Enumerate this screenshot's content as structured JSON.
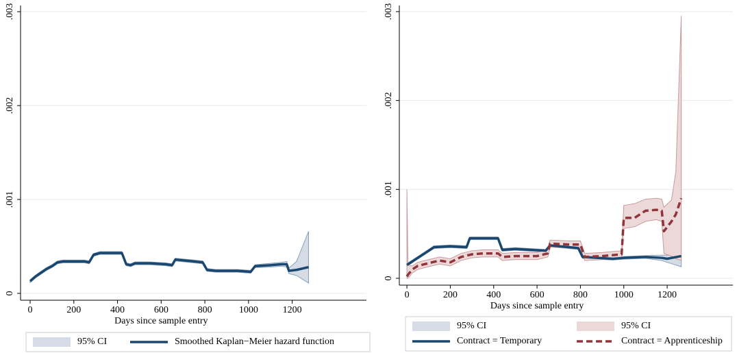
{
  "chart_data": [
    {
      "type": "line",
      "xlabel": "Days since sample entry",
      "xlim": [
        -44,
        1540
      ],
      "ylim": [
        -7.3e-05,
        0.003066
      ],
      "xticks": [
        0,
        200,
        400,
        600,
        800,
        1000,
        1200
      ],
      "yticks": [
        0,
        {
          "value": 0.001,
          "label": ".001"
        },
        {
          "value": 0.002,
          "label": ".002"
        },
        {
          "value": 0.003,
          "label": ".003"
        }
      ],
      "grid": true,
      "series": [
        {
          "name": "95% CI",
          "type": "band",
          "color": "#d5dce6",
          "edge": "#8aa0b8",
          "x": [
            0,
            25,
            50,
            75,
            100,
            125,
            150,
            200,
            250,
            270,
            290,
            320,
            350,
            420,
            440,
            460,
            480,
            550,
            620,
            650,
            665,
            750,
            790,
            810,
            850,
            950,
            1010,
            1030,
            1100,
            1150,
            1175,
            1185,
            1220,
            1275
          ],
          "lower": [
            0.000115,
            0.000165,
            0.000205,
            0.000245,
            0.000275,
            0.000315,
            0.000325,
            0.000325,
            0.000325,
            0.000315,
            0.000395,
            0.000415,
            0.000415,
            0.000415,
            0.000295,
            0.000285,
            0.000305,
            0.000305,
            0.000295,
            0.000285,
            0.000345,
            0.000325,
            0.000315,
            0.000235,
            0.000225,
            0.000225,
            0.000215,
            0.000275,
            0.00028,
            0.00029,
            0.00028,
            0.00021,
            0.00019,
            0.00011
          ],
          "upper": [
            0.000145,
            0.000195,
            0.000235,
            0.000275,
            0.000305,
            0.000345,
            0.000355,
            0.000355,
            0.000355,
            0.000345,
            0.000425,
            0.000445,
            0.000445,
            0.000445,
            0.000325,
            0.000315,
            0.000335,
            0.000335,
            0.000325,
            0.000315,
            0.000375,
            0.000355,
            0.000345,
            0.000265,
            0.000255,
            0.000255,
            0.000245,
            0.000305,
            0.00032,
            0.00033,
            0.00034,
            0.00027,
            0.00034,
            0.00066
          ]
        },
        {
          "name": "Smoothed Kaplan−Meier hazard function",
          "type": "line",
          "color": "#1a476f",
          "x": [
            0,
            25,
            50,
            75,
            100,
            125,
            150,
            200,
            250,
            270,
            290,
            320,
            350,
            420,
            440,
            460,
            480,
            550,
            620,
            650,
            665,
            750,
            790,
            810,
            850,
            950,
            1010,
            1030,
            1100,
            1150,
            1175,
            1185,
            1220,
            1275
          ],
          "values": [
            0.00013,
            0.00018,
            0.00022,
            0.00026,
            0.00029,
            0.00033,
            0.00034,
            0.00034,
            0.00034,
            0.00033,
            0.00041,
            0.00043,
            0.00043,
            0.00043,
            0.00031,
            0.0003,
            0.00032,
            0.00032,
            0.00031,
            0.0003,
            0.00036,
            0.00034,
            0.00033,
            0.00025,
            0.00024,
            0.00024,
            0.00023,
            0.00029,
            0.0003,
            0.00031,
            0.00031,
            0.00024,
            0.00025,
            0.00028
          ]
        }
      ]
    },
    {
      "type": "line",
      "xlabel": "Days since sample entry",
      "xlim": [
        -35,
        1503
      ],
      "ylim": [
        -7.7e-05,
        0.003069
      ],
      "xticks": [
        0,
        200,
        400,
        600,
        800,
        1000,
        1200
      ],
      "yticks": [
        0,
        {
          "value": 0.001,
          "label": ".001"
        },
        {
          "value": 0.002,
          "label": ".002"
        },
        {
          "value": 0.003,
          "label": ".003"
        }
      ],
      "grid": true,
      "series": [
        {
          "name": "95% CI",
          "type": "band",
          "color": "#d5dce6",
          "edge": "#8aa0b8",
          "x": [
            0,
            50,
            100,
            125,
            200,
            275,
            290,
            420,
            440,
            500,
            640,
            660,
            790,
            810,
            950,
            1000,
            1100,
            1175,
            1200,
            1265
          ],
          "lower": [
            0.000135,
            0.000215,
            0.000295,
            0.000335,
            0.000345,
            0.000335,
            0.000435,
            0.000435,
            0.000305,
            0.000315,
            0.000295,
            0.000355,
            0.000325,
            0.000225,
            0.000205,
            0.000215,
            0.000225,
            0.0002,
            0.00018,
            0.00013
          ],
          "upper": [
            0.000165,
            0.000245,
            0.000325,
            0.000365,
            0.000375,
            0.000365,
            0.000465,
            0.000465,
            0.000335,
            0.000345,
            0.000325,
            0.000385,
            0.000355,
            0.000255,
            0.000235,
            0.000245,
            0.000255,
            0.00026,
            0.00026,
            0.00026
          ]
        },
        {
          "name": "95% CI",
          "type": "band",
          "color": "#ecd8d8",
          "edge": "#c99a9c",
          "x": [
            0,
            5,
            25,
            50,
            100,
            150,
            200,
            250,
            300,
            350,
            420,
            440,
            500,
            600,
            650,
            660,
            750,
            800,
            820,
            900,
            990,
            1000,
            1050,
            1100,
            1150,
            1175,
            1185,
            1220,
            1240,
            1265
          ],
          "lower": [
            0,
            0,
            6e-05,
            0.0001,
            0.00013,
            0.00016,
            0.00014,
            0.0002,
            0.00023,
            0.00024,
            0.00024,
            0.0002,
            0.00021,
            0.00021,
            0.00024,
            0.00035,
            0.00034,
            0.00034,
            0.0002,
            0.00021,
            0.00023,
            0.00056,
            0.00058,
            0.00064,
            0.00066,
            0.00064,
            0.00028,
            0.00025,
            0.00022,
            0.0002
          ],
          "upper": [
            0.001,
            0.00015,
            0.00014,
            0.00018,
            0.00021,
            0.00024,
            0.00022,
            0.00028,
            0.00031,
            0.00032,
            0.00032,
            0.00028,
            0.00029,
            0.00029,
            0.00032,
            0.00043,
            0.00042,
            0.00042,
            0.00028,
            0.00029,
            0.00031,
            0.00082,
            0.00084,
            0.00089,
            0.0009,
            0.00089,
            0.0008,
            0.00088,
            0.0012,
            0.00295
          ]
        },
        {
          "name": "Contract = Temporary",
          "type": "line",
          "color": "#1a476f",
          "x": [
            0,
            50,
            100,
            125,
            200,
            275,
            290,
            420,
            440,
            500,
            640,
            660,
            790,
            810,
            950,
            1000,
            1100,
            1175,
            1200,
            1265
          ],
          "values": [
            0.00015,
            0.00023,
            0.00031,
            0.00035,
            0.00036,
            0.00035,
            0.00045,
            0.00045,
            0.00032,
            0.00033,
            0.00031,
            0.00037,
            0.00034,
            0.00024,
            0.00022,
            0.00023,
            0.00024,
            0.00023,
            0.00022,
            0.00025
          ]
        },
        {
          "name": "Contract = Apprenticeship",
          "type": "line",
          "color": "#90353b",
          "dash": true,
          "x": [
            0,
            5,
            25,
            50,
            100,
            150,
            200,
            250,
            300,
            350,
            420,
            440,
            500,
            600,
            650,
            660,
            750,
            800,
            820,
            900,
            990,
            1000,
            1050,
            1100,
            1150,
            1175,
            1185,
            1220,
            1240,
            1265
          ],
          "values": [
            2e-05,
            4e-05,
            0.0001,
            0.00014,
            0.00017,
            0.0002,
            0.00018,
            0.00024,
            0.00027,
            0.00028,
            0.00028,
            0.00024,
            0.00025,
            0.00025,
            0.00028,
            0.00039,
            0.00038,
            0.00038,
            0.00024,
            0.00025,
            0.00027,
            0.00068,
            0.00068,
            0.00076,
            0.00077,
            0.00076,
            0.00053,
            0.00064,
            0.00072,
            0.0009
          ]
        }
      ]
    }
  ]
}
